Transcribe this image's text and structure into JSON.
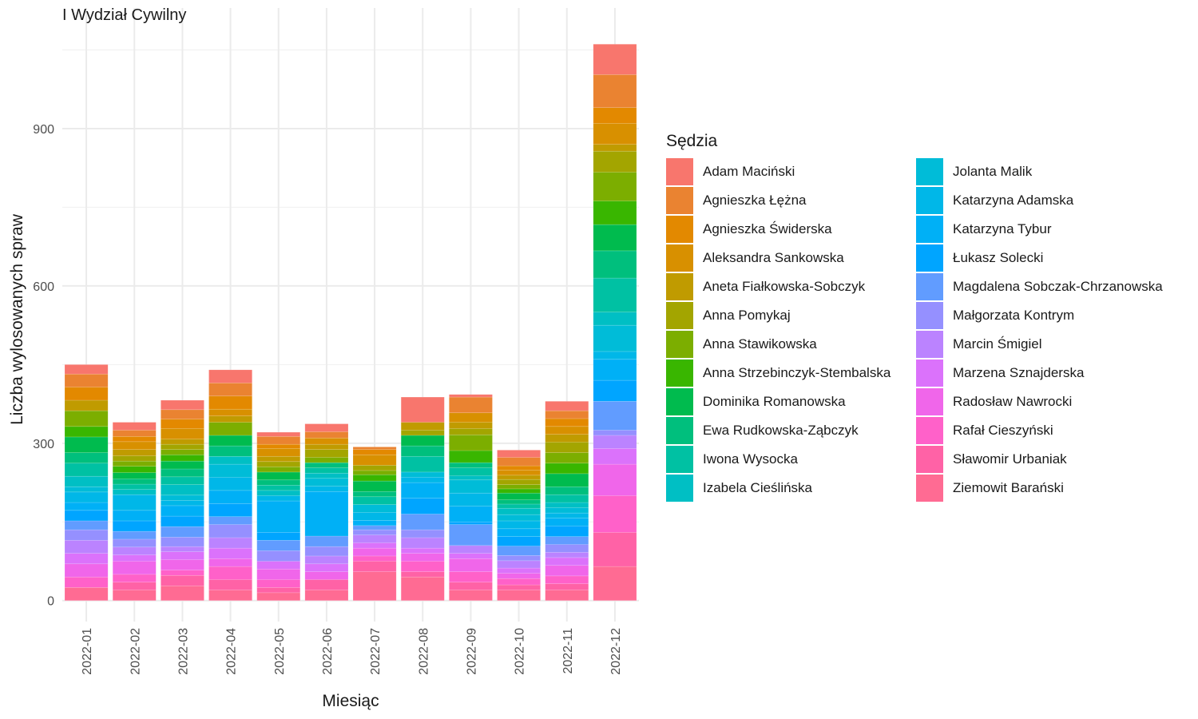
{
  "chart_data": {
    "type": "bar",
    "stacked": true,
    "title": "I Wydział Cywilny",
    "xlabel": "Miesiąc",
    "ylabel": "Liczba wylosowanych spraw",
    "ylim": [
      -40,
      1130
    ],
    "yticks": [
      0,
      300,
      600,
      900
    ],
    "grid": true,
    "legend_position": "right",
    "legend_title": "Sędzia",
    "categories": [
      "2022-01",
      "2022-02",
      "2022-03",
      "2022-04",
      "2022-05",
      "2022-06",
      "2022-07",
      "2022-08",
      "2022-09",
      "2022-10",
      "2022-11",
      "2022-12"
    ],
    "series": [
      {
        "name": "Adam Maciński",
        "color": "#F8766D",
        "values": [
          18,
          15,
          18,
          25,
          8,
          15,
          0,
          48,
          5,
          14,
          18,
          58
        ]
      },
      {
        "name": "Agnieszka Łężna",
        "color": "#EA8331",
        "values": [
          25,
          12,
          18,
          25,
          15,
          12,
          5,
          0,
          30,
          16,
          15,
          63
        ]
      },
      {
        "name": "Agnieszka Świderska",
        "color": "#E38900",
        "values": [
          25,
          10,
          18,
          25,
          8,
          0,
          10,
          0,
          0,
          8,
          15,
          30
        ]
      },
      {
        "name": "Aleksandra Sankowska",
        "color": "#D89000",
        "values": [
          0,
          15,
          20,
          13,
          15,
          12,
          20,
          0,
          18,
          10,
          15,
          40
        ]
      },
      {
        "name": "Aneta Fiałkowska-Sobczyk",
        "color": "#C09B00",
        "values": [
          20,
          12,
          10,
          12,
          10,
          10,
          0,
          15,
          12,
          8,
          15,
          13
        ]
      },
      {
        "name": "Anna Pomykaj",
        "color": "#A3A500",
        "values": [
          0,
          10,
          10,
          0,
          10,
          15,
          10,
          10,
          12,
          10,
          20,
          40
        ]
      },
      {
        "name": "Anna Stawikowska",
        "color": "#7CAE00",
        "values": [
          30,
          10,
          10,
          25,
          10,
          10,
          8,
          0,
          30,
          8,
          20,
          55
        ]
      },
      {
        "name": "Anna Strzebinczyk-Stembalska",
        "color": "#39B600",
        "values": [
          20,
          12,
          12,
          0,
          0,
          0,
          12,
          0,
          23,
          8,
          20,
          45
        ]
      },
      {
        "name": "Dominika Romanowska",
        "color": "#00BB4E",
        "values": [
          30,
          12,
          15,
          20,
          15,
          0,
          20,
          20,
          0,
          13,
          25,
          50
        ]
      },
      {
        "name": "Ewa Rudkowska-Ząbczyk",
        "color": "#00BF7D",
        "values": [
          20,
          10,
          15,
          20,
          10,
          10,
          10,
          20,
          10,
          8,
          15,
          52
        ]
      },
      {
        "name": "Iwona Wysocka",
        "color": "#00C1A3",
        "values": [
          25,
          10,
          15,
          0,
          10,
          10,
          15,
          30,
          15,
          8,
          15,
          65
        ]
      },
      {
        "name": "Izabela Cieślińska",
        "color": "#00BFC4",
        "values": [
          20,
          10,
          20,
          15,
          10,
          10,
          0,
          0,
          8,
          12,
          10,
          25
        ]
      },
      {
        "name": "Jolanta Malik",
        "color": "#00BCD8",
        "values": [
          10,
          0,
          10,
          25,
          0,
          15,
          15,
          10,
          25,
          12,
          10,
          50
        ]
      },
      {
        "name": "Katarzyna Adamska",
        "color": "#00B7E8",
        "values": [
          20,
          30,
          10,
          25,
          10,
          10,
          15,
          10,
          25,
          15,
          10,
          15
        ]
      },
      {
        "name": "Katarzyna Tybur",
        "color": "#00B0F6",
        "values": [
          15,
          20,
          20,
          25,
          60,
          85,
          10,
          30,
          30,
          15,
          15,
          40
        ]
      },
      {
        "name": "Łukasz Solecki",
        "color": "#00A5FF",
        "values": [
          20,
          20,
          20,
          25,
          15,
          0,
          0,
          30,
          5,
          18,
          20,
          40
        ]
      },
      {
        "name": "Magdalena Sobczak-Chrzanowska",
        "color": "#619CFF",
        "values": [
          17,
          15,
          20,
          15,
          20,
          20,
          8,
          30,
          40,
          18,
          15,
          55
        ]
      },
      {
        "name": "Małgorzata Kontrym",
        "color": "#9590FF",
        "values": [
          20,
          15,
          18,
          25,
          20,
          18,
          10,
          15,
          0,
          10,
          15,
          10
        ]
      },
      {
        "name": "Marcin Śmigiel",
        "color": "#BB83FF",
        "values": [
          25,
          15,
          10,
          20,
          0,
          15,
          15,
          20,
          15,
          14,
          10,
          25
        ]
      },
      {
        "name": "Marzena Sznajderska",
        "color": "#DB72FB",
        "values": [
          20,
          12,
          15,
          20,
          15,
          15,
          10,
          10,
          10,
          10,
          15,
          30
        ]
      },
      {
        "name": "Radosław Nawrocki",
        "color": "#F066EA",
        "values": [
          25,
          25,
          20,
          15,
          20,
          15,
          15,
          15,
          25,
          10,
          20,
          60
        ]
      },
      {
        "name": "Rafał Cieszyński",
        "color": "#FF61C9",
        "values": [
          20,
          15,
          10,
          25,
          15,
          0,
          10,
          20,
          20,
          12,
          15,
          70
        ]
      },
      {
        "name": "Sławomir Urbaniak",
        "color": "#FF62A6",
        "values": [
          0,
          15,
          20,
          20,
          10,
          20,
          20,
          10,
          15,
          10,
          12,
          65
        ]
      },
      {
        "name": "Ziemowit Barański",
        "color": "#FF6B93",
        "values": [
          25,
          20,
          28,
          20,
          15,
          20,
          55,
          45,
          20,
          20,
          20,
          65
        ]
      }
    ]
  }
}
